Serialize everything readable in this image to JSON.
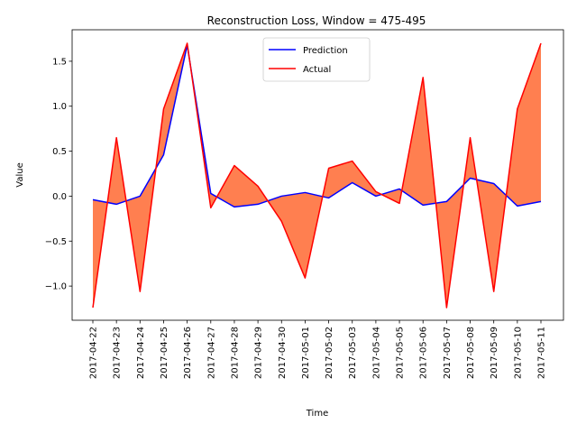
{
  "chart_data": {
    "type": "line",
    "title": "Reconstruction Loss, Window = 475-495",
    "xlabel": "Time",
    "ylabel": "Value",
    "x": [
      "2017-04-22",
      "2017-04-23",
      "2017-04-24",
      "2017-04-25",
      "2017-04-26",
      "2017-04-27",
      "2017-04-28",
      "2017-04-29",
      "2017-04-30",
      "2017-05-01",
      "2017-05-02",
      "2017-05-03",
      "2017-05-04",
      "2017-05-05",
      "2017-05-06",
      "2017-05-07",
      "2017-05-08",
      "2017-05-09",
      "2017-05-10",
      "2017-05-11"
    ],
    "yticks": [
      "1.5",
      "1.0",
      "0.5",
      "0.0",
      "−0.5",
      "−1.0"
    ],
    "ytick_values": [
      1.5,
      1.0,
      0.5,
      0.0,
      -0.5,
      -1.0
    ],
    "ylim": [
      -1.38,
      1.85
    ],
    "series": [
      {
        "name": "Prediction",
        "color": "#0000ff",
        "values": [
          -0.04,
          -0.09,
          0.0,
          0.46,
          1.68,
          0.03,
          -0.12,
          -0.09,
          0.0,
          0.04,
          -0.02,
          0.15,
          0.0,
          0.08,
          -0.1,
          -0.06,
          0.2,
          0.14,
          -0.11,
          -0.06
        ]
      },
      {
        "name": "Actual",
        "color": "#ff0000",
        "values": [
          -1.24,
          0.65,
          -1.06,
          0.97,
          1.7,
          -0.13,
          0.34,
          0.11,
          -0.28,
          -0.91,
          0.31,
          0.39,
          0.05,
          -0.08,
          1.32,
          -1.24,
          0.65,
          -1.06,
          0.97,
          1.7
        ]
      }
    ],
    "fill_color": "#ff7f50",
    "legend_position": "top-center"
  }
}
